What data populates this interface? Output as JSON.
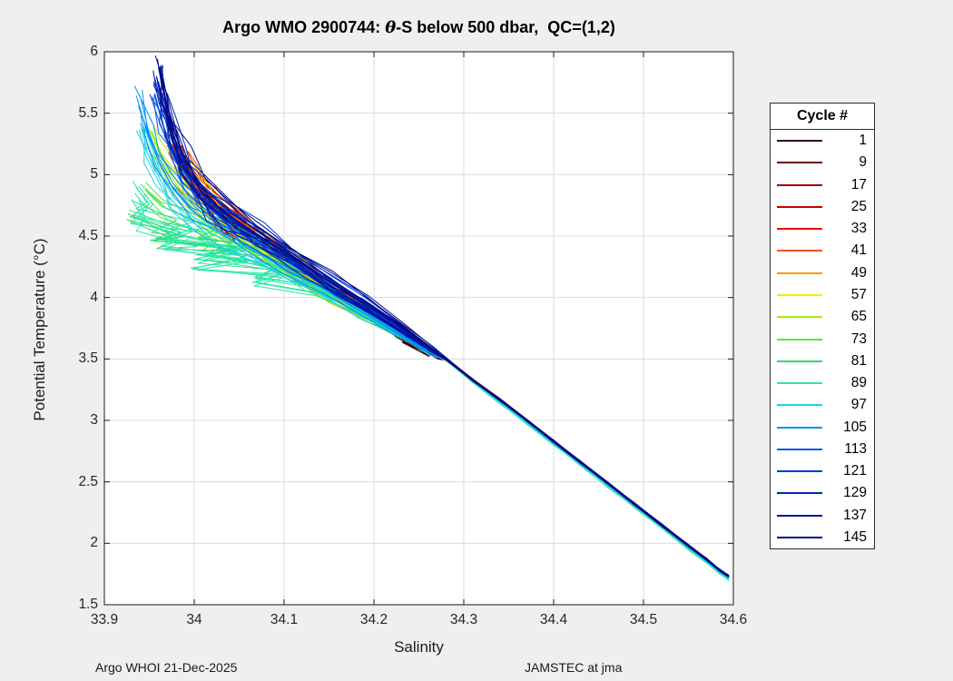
{
  "figure": {
    "background_color": "#efefef",
    "plot_background_color": "#ffffff",
    "axes_color": "#1a1a1a",
    "grid_color": "#dcdcdc",
    "tick_length": 6
  },
  "title": {
    "prefix": "Argo WMO 2900744: ",
    "theta": "θ",
    "suffix": "-S below 500 dbar,  QC=(1,2)"
  },
  "annotations": {
    "left": "Argo WHOI 21-Dec-2025",
    "right": "JAMSTEC at jma"
  },
  "legend": {
    "title": "Cycle #"
  },
  "chart_data": {
    "type": "line",
    "title": "Argo WMO 2900744: θ-S below 500 dbar,  QC=(1,2)",
    "xlabel": "Salinity",
    "ylabel": "Potential Temperature (°C)",
    "xlim": [
      33.9,
      34.6
    ],
    "ylim": [
      1.5,
      6
    ],
    "xticks": [
      "33.9",
      "34",
      "34.1",
      "34.2",
      "34.3",
      "34.4",
      "34.5",
      "34.6"
    ],
    "yticks": [
      "6",
      "5.5",
      "5",
      "4.5",
      "4",
      "3.5",
      "3",
      "2.5",
      "2",
      "1.5"
    ],
    "grid": true,
    "legend_position": "right-outside",
    "legend_title": "Cycle #",
    "shared_tail_points": [
      [
        34.31,
        3.33
      ],
      [
        34.34,
        3.17
      ],
      [
        34.37,
        3.0
      ],
      [
        34.4,
        2.83
      ],
      [
        34.43,
        2.66
      ],
      [
        34.46,
        2.49
      ],
      [
        34.49,
        2.32
      ],
      [
        34.52,
        2.15
      ],
      [
        34.55,
        1.98
      ],
      [
        34.57,
        1.87
      ],
      [
        34.585,
        1.78
      ],
      [
        34.595,
        1.73
      ]
    ],
    "series": [
      {
        "name": "1",
        "color": "#400000",
        "tail_offset": 0,
        "points": [
          [
            34.015,
            4.78
          ],
          [
            34.03,
            4.68
          ],
          [
            34.05,
            4.56
          ],
          [
            34.08,
            4.42
          ],
          [
            34.11,
            4.27
          ],
          [
            34.145,
            4.1
          ],
          [
            34.18,
            3.94
          ],
          [
            34.21,
            3.79
          ],
          [
            34.225,
            3.71
          ],
          [
            34.25,
            3.59
          ],
          [
            34.232,
            3.66
          ],
          [
            34.262,
            3.53
          ],
          [
            34.243,
            3.61
          ],
          [
            34.272,
            3.51
          ],
          [
            34.28,
            3.5
          ]
        ]
      },
      {
        "name": "9",
        "color": "#6e0000",
        "tail_offset": 0,
        "points": [
          [
            34.005,
            4.87
          ],
          [
            34.025,
            4.73
          ],
          [
            34.05,
            4.58
          ],
          [
            34.08,
            4.43
          ],
          [
            34.115,
            4.26
          ],
          [
            34.15,
            4.09
          ],
          [
            34.185,
            3.92
          ],
          [
            34.22,
            3.75
          ],
          [
            34.25,
            3.6
          ],
          [
            34.28,
            3.5
          ]
        ]
      },
      {
        "name": "17",
        "color": "#9a0000",
        "tail_offset": 0,
        "points": [
          [
            33.985,
            5.16
          ],
          [
            33.998,
            5.0
          ],
          [
            34.015,
            4.84
          ],
          [
            34.04,
            4.67
          ],
          [
            34.07,
            4.49
          ],
          [
            34.105,
            4.3
          ],
          [
            34.14,
            4.12
          ],
          [
            34.175,
            3.96
          ],
          [
            34.21,
            3.8
          ],
          [
            34.245,
            3.62
          ],
          [
            34.28,
            3.5
          ]
        ]
      },
      {
        "name": "25",
        "color": "#c80000",
        "tail_offset": 0,
        "points": [
          [
            33.975,
            5.22
          ],
          [
            33.988,
            5.06
          ],
          [
            34.005,
            4.89
          ],
          [
            34.03,
            4.7
          ],
          [
            34.06,
            4.52
          ],
          [
            34.095,
            4.33
          ],
          [
            34.13,
            4.15
          ],
          [
            34.168,
            3.98
          ],
          [
            34.205,
            3.81
          ],
          [
            34.243,
            3.63
          ],
          [
            34.28,
            3.5
          ]
        ]
      },
      {
        "name": "33",
        "color": "#ec0800",
        "tail_offset": 0,
        "points": [
          [
            33.97,
            5.24
          ],
          [
            33.983,
            5.09
          ],
          [
            34.0,
            4.91
          ],
          [
            34.025,
            4.72
          ],
          [
            34.055,
            4.54
          ],
          [
            34.09,
            4.36
          ],
          [
            34.125,
            4.18
          ],
          [
            34.163,
            4.0
          ],
          [
            34.2,
            3.83
          ],
          [
            34.24,
            3.65
          ],
          [
            34.28,
            3.5
          ]
        ]
      },
      {
        "name": "41",
        "color": "#f05300",
        "tail_offset": 0,
        "points": [
          [
            33.988,
            5.1
          ],
          [
            34.002,
            4.94
          ],
          [
            34.022,
            4.76
          ],
          [
            34.05,
            4.58
          ],
          [
            34.085,
            4.4
          ],
          [
            34.12,
            4.22
          ],
          [
            34.158,
            4.04
          ],
          [
            34.196,
            3.86
          ],
          [
            34.238,
            3.67
          ],
          [
            34.28,
            3.5
          ]
        ]
      },
      {
        "name": "49",
        "color": "#f0a000",
        "tail_offset": -0.005,
        "points": [
          [
            33.978,
            5.06
          ],
          [
            33.995,
            4.9
          ],
          [
            34.015,
            4.73
          ],
          [
            34.045,
            4.55
          ],
          [
            34.08,
            4.38
          ],
          [
            34.117,
            4.2
          ],
          [
            34.155,
            4.02
          ],
          [
            34.195,
            3.84
          ],
          [
            34.237,
            3.66
          ],
          [
            34.28,
            3.5
          ]
        ]
      },
      {
        "name": "57",
        "color": "#efef00",
        "tail_offset": -0.008,
        "points": [
          [
            33.99,
            5.05
          ],
          [
            34.006,
            4.88
          ],
          [
            34.028,
            4.7
          ],
          [
            34.058,
            4.52
          ],
          [
            34.093,
            4.34
          ],
          [
            34.13,
            4.16
          ],
          [
            34.168,
            3.99
          ],
          [
            34.205,
            3.82
          ],
          [
            34.242,
            3.65
          ],
          [
            34.28,
            3.5
          ]
        ]
      },
      {
        "name": "65",
        "color": "#a6f000",
        "tail_offset": -0.01,
        "points": [
          [
            33.952,
            5.36
          ],
          [
            33.965,
            5.14
          ],
          [
            33.982,
            4.93
          ],
          [
            34.005,
            4.75
          ],
          [
            34.035,
            4.58
          ],
          [
            34.07,
            4.41
          ],
          [
            34.108,
            4.23
          ],
          [
            34.147,
            4.05
          ],
          [
            34.186,
            3.87
          ],
          [
            34.233,
            3.67
          ],
          [
            34.28,
            3.5
          ]
        ]
      },
      {
        "name": "73",
        "color": "#50e84b",
        "tail_offset": -0.015,
        "points": [
          [
            33.945,
            4.88
          ],
          [
            33.968,
            4.73
          ],
          [
            33.995,
            4.64
          ],
          [
            34.025,
            4.56
          ],
          [
            34.005,
            4.49
          ],
          [
            34.055,
            4.43
          ],
          [
            34.09,
            4.3
          ],
          [
            34.125,
            4.14
          ],
          [
            34.16,
            3.99
          ],
          [
            34.2,
            3.82
          ],
          [
            34.24,
            3.65
          ],
          [
            34.28,
            3.5
          ]
        ]
      },
      {
        "name": "81",
        "color": "#2edc6e",
        "tail_offset": -0.02,
        "points": [
          [
            33.928,
            4.66
          ],
          [
            33.985,
            4.53
          ],
          [
            33.955,
            4.46
          ],
          [
            34.045,
            4.41
          ],
          [
            34.015,
            4.34
          ],
          [
            34.085,
            4.28
          ],
          [
            34.125,
            4.13
          ],
          [
            34.165,
            3.97
          ],
          [
            34.205,
            3.8
          ],
          [
            34.243,
            3.63
          ],
          [
            34.28,
            3.5
          ]
        ]
      },
      {
        "name": "89",
        "color": "#2be8a8",
        "tail_offset": -0.025,
        "points": [
          [
            33.935,
            4.9
          ],
          [
            33.95,
            4.76
          ],
          [
            33.932,
            4.67
          ],
          [
            33.998,
            4.56
          ],
          [
            33.968,
            4.48
          ],
          [
            34.055,
            4.41
          ],
          [
            34.0,
            4.31
          ],
          [
            34.098,
            4.26
          ],
          [
            34.068,
            4.17
          ],
          [
            34.138,
            4.09
          ],
          [
            34.178,
            3.93
          ],
          [
            34.218,
            3.76
          ],
          [
            34.255,
            3.6
          ],
          [
            34.28,
            3.5
          ]
        ]
      },
      {
        "name": "97",
        "color": "#1fd2e8",
        "tail_offset": -0.012,
        "points": [
          [
            33.94,
            5.42
          ],
          [
            33.95,
            5.21
          ],
          [
            33.962,
            5.0
          ],
          [
            33.977,
            4.82
          ],
          [
            33.998,
            4.66
          ],
          [
            34.028,
            4.52
          ],
          [
            34.065,
            4.38
          ],
          [
            34.105,
            4.23
          ],
          [
            34.145,
            4.06
          ],
          [
            34.185,
            3.89
          ],
          [
            34.225,
            3.71
          ],
          [
            34.262,
            3.55
          ],
          [
            34.28,
            3.5
          ]
        ]
      },
      {
        "name": "105",
        "color": "#0092f0",
        "tail_offset": 0,
        "points": [
          [
            33.938,
            5.56
          ],
          [
            33.949,
            5.33
          ],
          [
            33.961,
            5.1
          ],
          [
            33.976,
            4.89
          ],
          [
            33.997,
            4.71
          ],
          [
            34.026,
            4.56
          ],
          [
            34.062,
            4.41
          ],
          [
            34.1,
            4.26
          ],
          [
            34.14,
            4.09
          ],
          [
            34.18,
            3.91
          ],
          [
            34.22,
            3.73
          ],
          [
            34.258,
            3.56
          ],
          [
            34.28,
            3.5
          ]
        ]
      },
      {
        "name": "113",
        "color": "#0056e8",
        "tail_offset": 0,
        "points": [
          [
            33.956,
            5.66
          ],
          [
            33.964,
            5.43
          ],
          [
            33.974,
            5.2
          ],
          [
            33.988,
            4.98
          ],
          [
            34.008,
            4.79
          ],
          [
            34.036,
            4.62
          ],
          [
            34.07,
            4.46
          ],
          [
            34.108,
            4.29
          ],
          [
            34.147,
            4.11
          ],
          [
            34.187,
            3.93
          ],
          [
            34.227,
            3.74
          ],
          [
            34.263,
            3.57
          ],
          [
            34.28,
            3.5
          ]
        ]
      },
      {
        "name": "121",
        "color": "#0038d8",
        "tail_offset": 0,
        "points": [
          [
            33.96,
            5.76
          ],
          [
            33.967,
            5.52
          ],
          [
            33.977,
            5.27
          ],
          [
            33.99,
            5.04
          ],
          [
            34.01,
            4.84
          ],
          [
            34.038,
            4.66
          ],
          [
            34.073,
            4.49
          ],
          [
            34.111,
            4.31
          ],
          [
            34.15,
            4.13
          ],
          [
            34.19,
            3.94
          ],
          [
            34.23,
            3.75
          ],
          [
            34.265,
            3.57
          ],
          [
            34.28,
            3.5
          ]
        ]
      },
      {
        "name": "129",
        "color": "#0026b8",
        "tail_offset": 0,
        "points": [
          [
            33.966,
            5.62
          ],
          [
            33.974,
            5.39
          ],
          [
            33.985,
            5.16
          ],
          [
            33.999,
            4.95
          ],
          [
            34.019,
            4.77
          ],
          [
            34.047,
            4.6
          ],
          [
            34.082,
            4.44
          ],
          [
            34.12,
            4.27
          ],
          [
            34.158,
            4.09
          ],
          [
            34.197,
            3.91
          ],
          [
            34.236,
            3.72
          ],
          [
            34.268,
            3.56
          ],
          [
            34.28,
            3.5
          ]
        ]
      },
      {
        "name": "137",
        "color": "#0013a2",
        "tail_offset": 0,
        "points": [
          [
            33.958,
            5.8
          ],
          [
            33.965,
            5.56
          ],
          [
            33.975,
            5.31
          ],
          [
            33.988,
            5.07
          ],
          [
            34.008,
            4.86
          ],
          [
            34.036,
            4.68
          ],
          [
            34.071,
            4.51
          ],
          [
            34.109,
            4.33
          ],
          [
            34.148,
            4.14
          ],
          [
            34.188,
            3.95
          ],
          [
            34.228,
            3.76
          ],
          [
            34.264,
            3.58
          ],
          [
            34.28,
            3.5
          ]
        ]
      },
      {
        "name": "145",
        "color": "#000884",
        "tail_offset": 0,
        "points": [
          [
            33.962,
            5.88
          ],
          [
            33.968,
            5.62
          ],
          [
            33.978,
            5.35
          ],
          [
            33.991,
            5.1
          ],
          [
            34.011,
            4.88
          ],
          [
            34.04,
            4.7
          ],
          [
            34.075,
            4.52
          ],
          [
            34.113,
            4.34
          ],
          [
            34.152,
            4.15
          ],
          [
            34.192,
            3.96
          ],
          [
            34.232,
            3.77
          ],
          [
            34.266,
            3.58
          ],
          [
            34.28,
            3.5
          ]
        ]
      }
    ]
  }
}
